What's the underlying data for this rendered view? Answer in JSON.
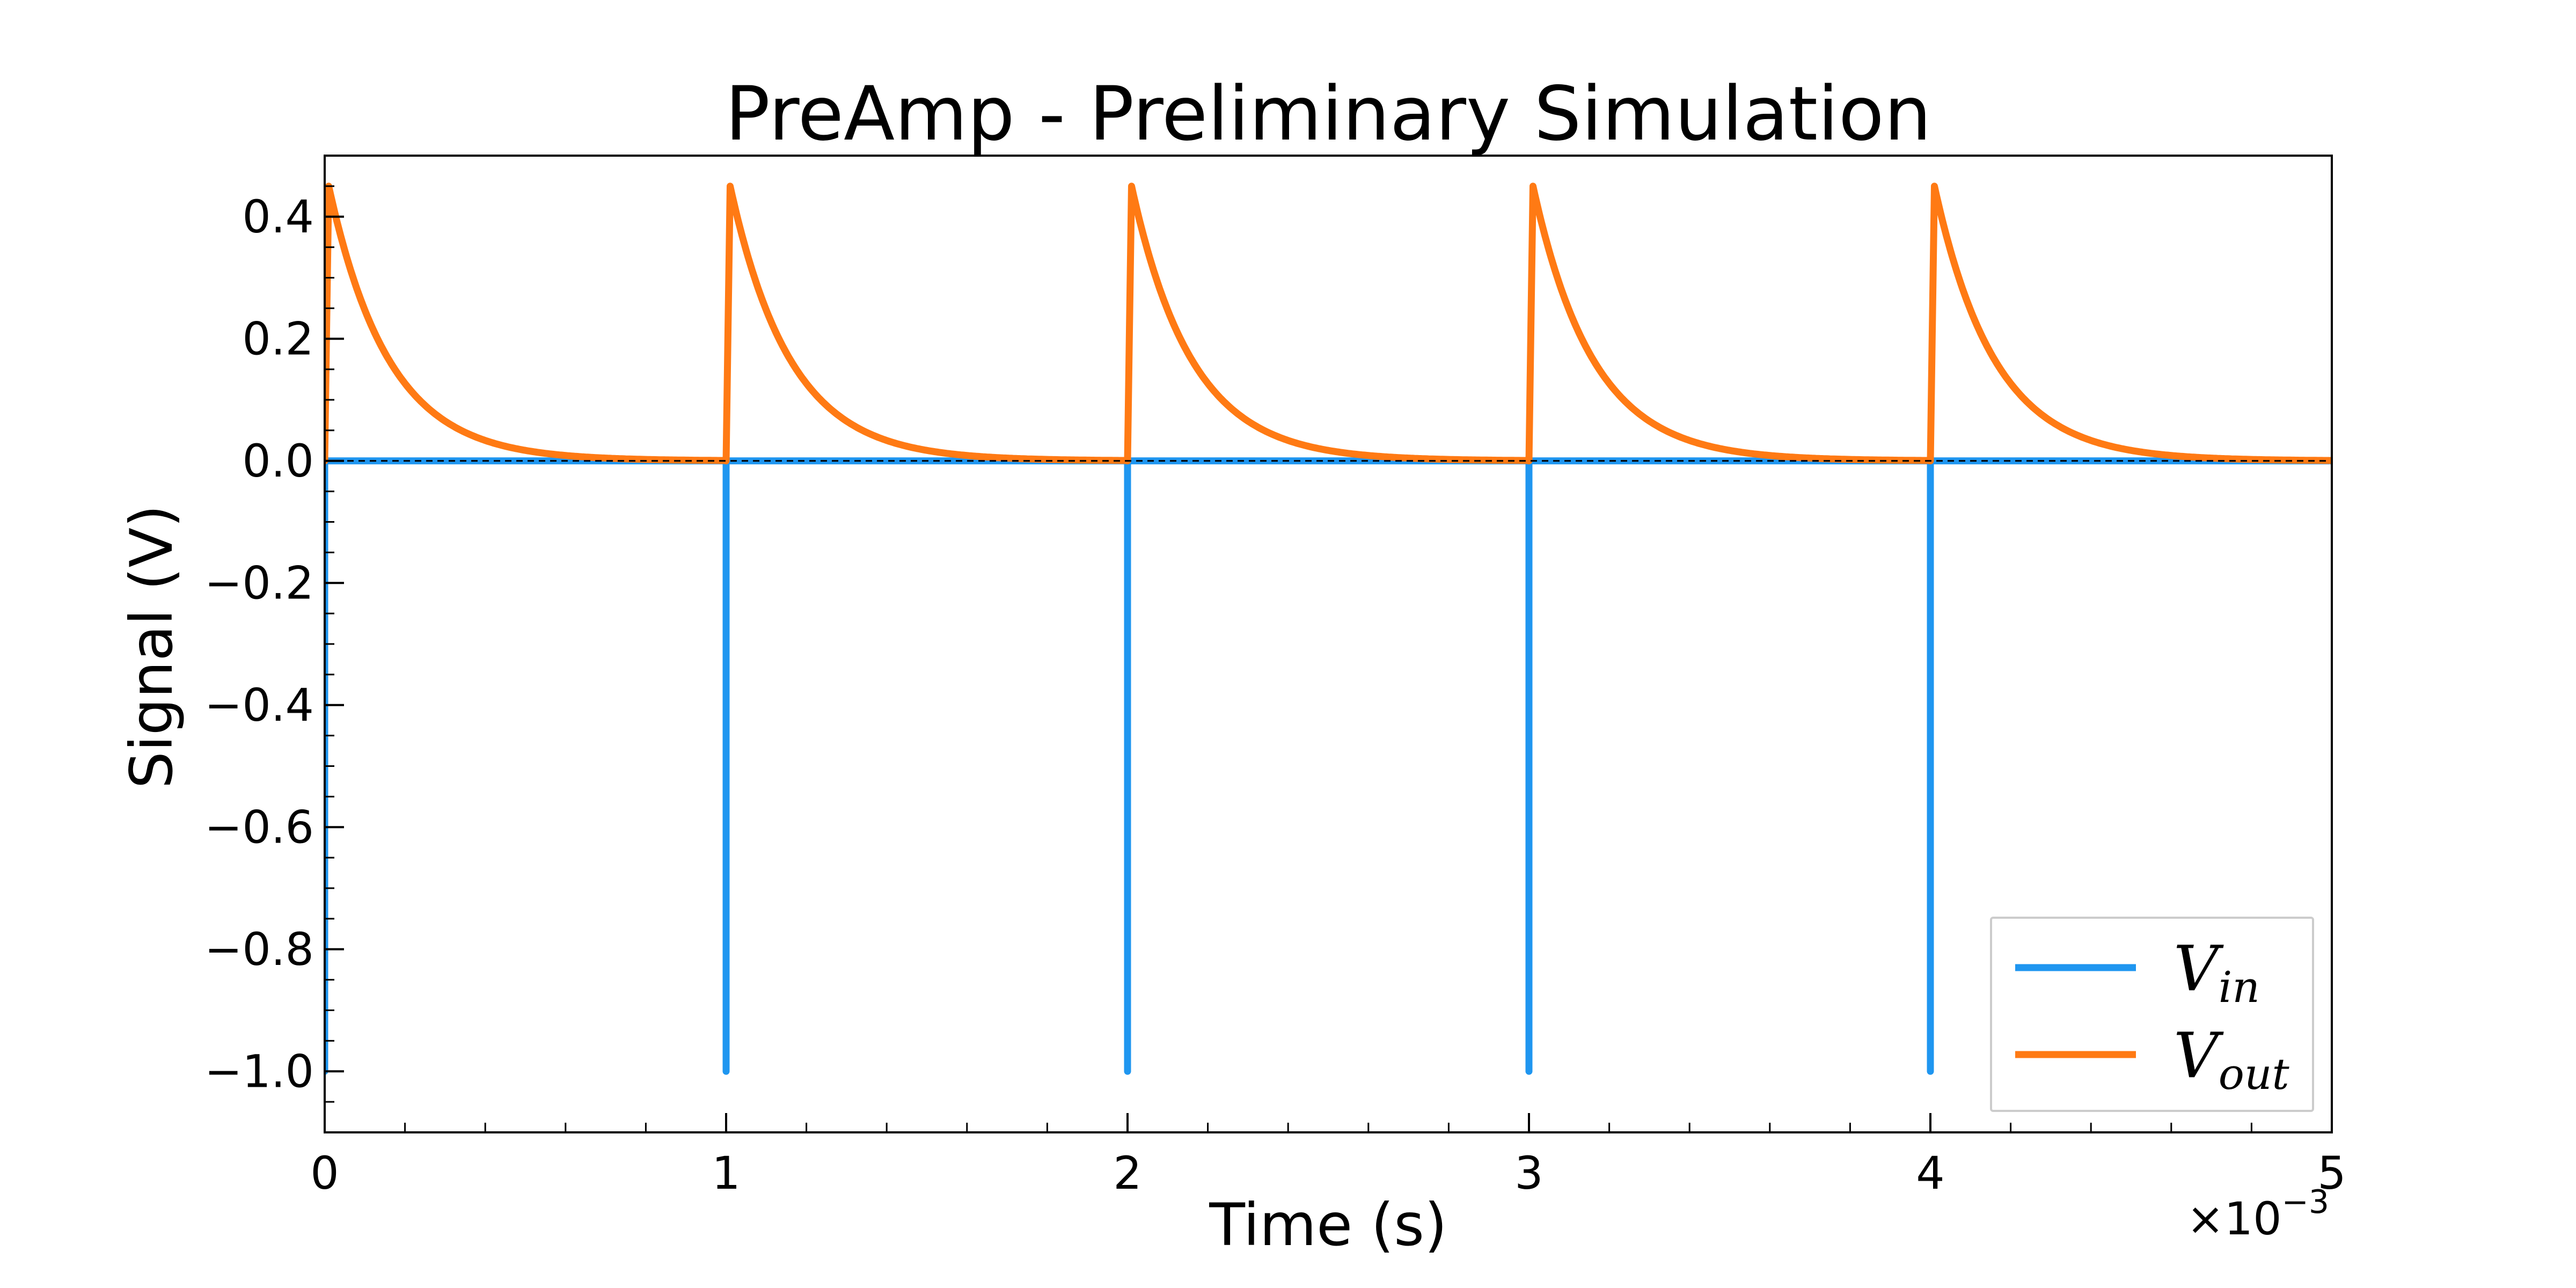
{
  "chart_data": {
    "type": "line",
    "title": "PreAmp - Preliminary Simulation",
    "xlabel": "Time (s)",
    "ylabel": "Signal (V)",
    "x_offset_text": "×10",
    "x_offset_exp": "−3",
    "xlim": [
      0,
      0.005
    ],
    "ylim": [
      -1.1,
      0.5
    ],
    "x_ticks": [
      0,
      0.001,
      0.002,
      0.003,
      0.004,
      0.005
    ],
    "x_tick_labels": [
      "0",
      "1",
      "2",
      "3",
      "4",
      "5"
    ],
    "y_ticks": [
      0.4,
      0.2,
      0.0,
      -0.2,
      -0.4,
      -0.6,
      -0.8,
      -1.0
    ],
    "y_tick_labels": [
      "0.4",
      "0.2",
      "0.0",
      "−0.2",
      "−0.4",
      "−0.6",
      "−0.8",
      "−1.0"
    ],
    "grid": false,
    "legend_position": "lower-right",
    "zero_reference_line": true,
    "series": [
      {
        "name": "V",
        "name_sub": "in",
        "color": "#1f96f0",
        "kind": "pulse-train",
        "baseline": 0.0,
        "pulse_value": -1.0,
        "pulse_times": [
          0,
          0.001,
          0.002,
          0.003,
          0.004
        ]
      },
      {
        "name": "V",
        "name_sub": "out",
        "color": "#ff7a14",
        "kind": "exponential-decay-train",
        "baseline": 0.0,
        "peak_value": 0.45,
        "decay_time_constant": 0.00015,
        "pulse_times": [
          0,
          0.001,
          0.002,
          0.003,
          0.004
        ]
      }
    ]
  }
}
